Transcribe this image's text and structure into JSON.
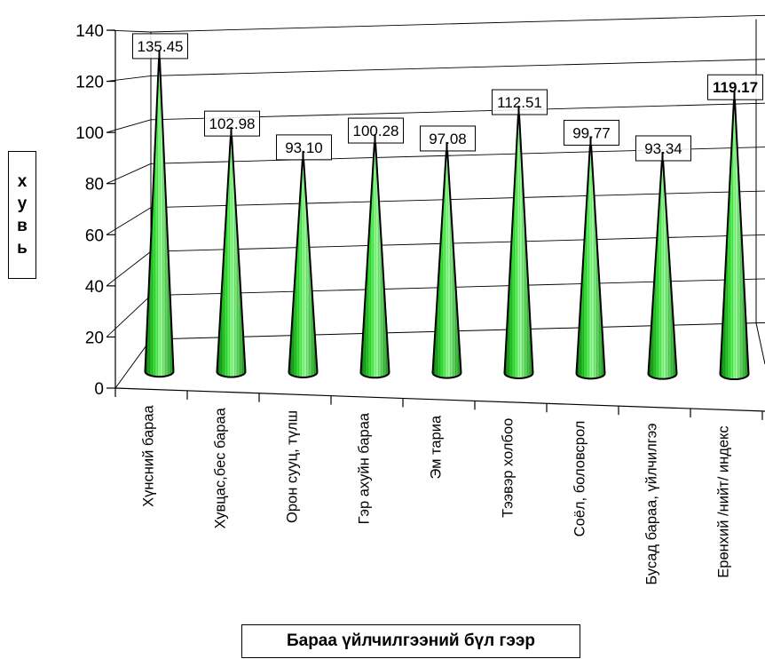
{
  "chart_data": {
    "type": "bar",
    "style": "3d-cone",
    "categories": [
      "Хүнсний бараа",
      "Хувцас,бес бараа",
      "Орон сууц, түлш",
      "Гэр ахуйн бараа",
      "Эм тариа",
      "Тээвэр холбоо",
      "Соёл, боловсрол",
      "Бусад бараа, үйлчилгээ",
      "Ерөнхий /нийт/ индекс"
    ],
    "values": [
      135.45,
      102.98,
      93.1,
      100.28,
      97.08,
      112.51,
      99.77,
      93.34,
      119.17
    ],
    "value_labels": [
      "135.45",
      "102.98",
      "93.10",
      "100.28",
      "97.08",
      "112.51",
      "99.77",
      "93.34",
      "119.17"
    ],
    "ylim": [
      0,
      140
    ],
    "yticks": [
      0,
      20,
      40,
      60,
      80,
      100,
      120,
      140
    ],
    "ylabel_letters": [
      "х",
      "у",
      "в",
      "ь"
    ],
    "xlabel": "Бараа үйлчилгээний бүл гээр",
    "grid": true,
    "colors": {
      "cone": "#22dd22",
      "cone_light": "#99ff99",
      "cone_dark": "#0a7a0a",
      "outline": "#000000"
    }
  }
}
